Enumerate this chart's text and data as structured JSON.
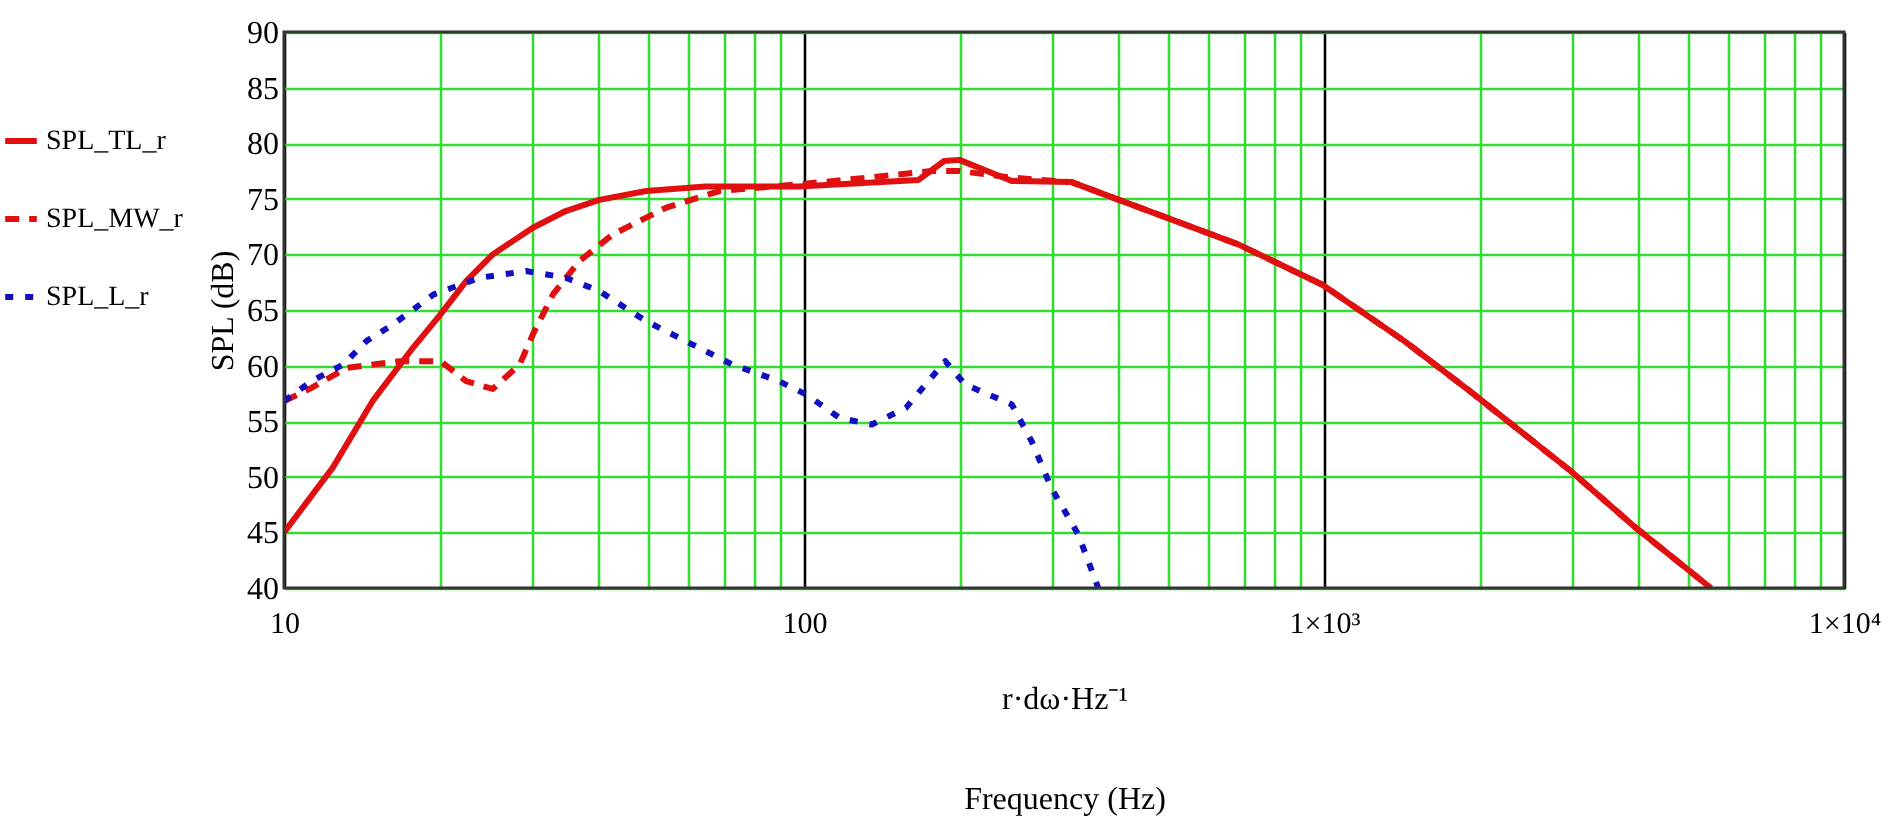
{
  "chart_data": {
    "type": "line",
    "xlabel": "r·dω·Hz⁻¹\nFrequency (Hz)",
    "ylabel": "SPL (dB)",
    "log": "x",
    "xlim": [
      10,
      10000
    ],
    "ylim": [
      40,
      90
    ],
    "xticks": [
      10,
      {
        "value": 20,
        "label": null
      },
      {
        "value": 30,
        "label": null
      },
      {
        "value": 40,
        "label": null
      },
      {
        "value": 50,
        "label": null
      },
      {
        "value": 60,
        "label": null
      },
      {
        "value": 70,
        "label": null
      },
      {
        "value": 80,
        "label": null
      },
      {
        "value": 90,
        "label": null
      },
      100,
      {
        "value": 200,
        "label": null
      },
      {
        "value": 300,
        "label": null
      },
      {
        "value": 400,
        "label": null
      },
      {
        "value": 500,
        "label": null
      },
      {
        "value": 600,
        "label": null
      },
      {
        "value": 700,
        "label": null
      },
      {
        "value": 800,
        "label": null
      },
      {
        "value": 900,
        "label": null
      },
      {
        "value": 1000,
        "label": "1×10³"
      },
      {
        "value": 2000,
        "label": null
      },
      {
        "value": 3000,
        "label": null
      },
      {
        "value": 4000,
        "label": null
      },
      {
        "value": 5000,
        "label": null
      },
      {
        "value": 6000,
        "label": null
      },
      {
        "value": 7000,
        "label": null
      },
      {
        "value": 8000,
        "label": null
      },
      {
        "value": 9000,
        "label": null
      },
      {
        "value": 10000,
        "label": "1×10⁴"
      }
    ],
    "yticks": [
      40,
      45,
      50,
      55,
      60,
      65,
      70,
      75,
      80,
      85,
      90
    ],
    "grid": true,
    "legend": "left",
    "series": [
      {
        "name": "SPL_TL_r",
        "color": "#e01010",
        "line_style": "solid",
        "x": [
          10,
          12.4,
          14.8,
          17.7,
          20,
          22.4,
          25.2,
          30.1,
          34.8,
          40.4,
          49.7,
          64.6,
          97.8,
          166,
          186,
          199,
          251,
          327,
          479,
          684,
          991,
          1428,
          1908,
          2985,
          3980,
          5546
        ],
        "values": [
          45,
          50.8,
          56.8,
          61.6,
          64.6,
          67.6,
          70,
          72.4,
          73.9,
          74.9,
          75.7,
          76.1,
          76.1,
          76.7,
          78.4,
          78.5,
          76.6,
          76.5,
          73.6,
          70.9,
          67.3,
          62.2,
          57.7,
          50.5,
          45.4,
          40
        ]
      },
      {
        "name": "SPL_MW_r",
        "color": "#e01010",
        "line_style": "dashed",
        "x": [
          10,
          11.3,
          13.2,
          16.7,
          20,
          22.4,
          25.2,
          28.4,
          30.1,
          32.9,
          37,
          42.9,
          54.3,
          68.7,
          97.8,
          132,
          176,
          199,
          251,
          327,
          479,
          684,
          991,
          1428,
          1908,
          2985,
          3980,
          5546
        ],
        "values": [
          56.8,
          58,
          59.8,
          60.4,
          60.4,
          58.6,
          57.9,
          60.1,
          62.8,
          66.4,
          69.4,
          71.8,
          74.2,
          75.7,
          76.3,
          76.9,
          77.5,
          77.5,
          76.9,
          76.5,
          73.6,
          70.9,
          67.3,
          62.2,
          57.7,
          50.5,
          45.4,
          40
        ]
      },
      {
        "name": "SPL_L_r",
        "color": "#1010c0",
        "line_style": "dotted",
        "x": [
          10,
          11.3,
          13,
          14.4,
          16.2,
          19.4,
          23.8,
          29.2,
          34.8,
          40.4,
          49.7,
          62.8,
          72.8,
          89.5,
          101,
          117,
          135,
          157,
          187,
          204,
          251,
          274,
          299,
          337,
          368
        ],
        "values": [
          56.8,
          58.6,
          60.1,
          62.2,
          63.7,
          66.4,
          67.9,
          68.5,
          67.9,
          66.7,
          64,
          61.6,
          60.1,
          58.6,
          57.4,
          55.3,
          54.7,
          56.2,
          60.4,
          58.3,
          56.5,
          53.2,
          49,
          44.8,
          40
        ]
      }
    ]
  }
}
